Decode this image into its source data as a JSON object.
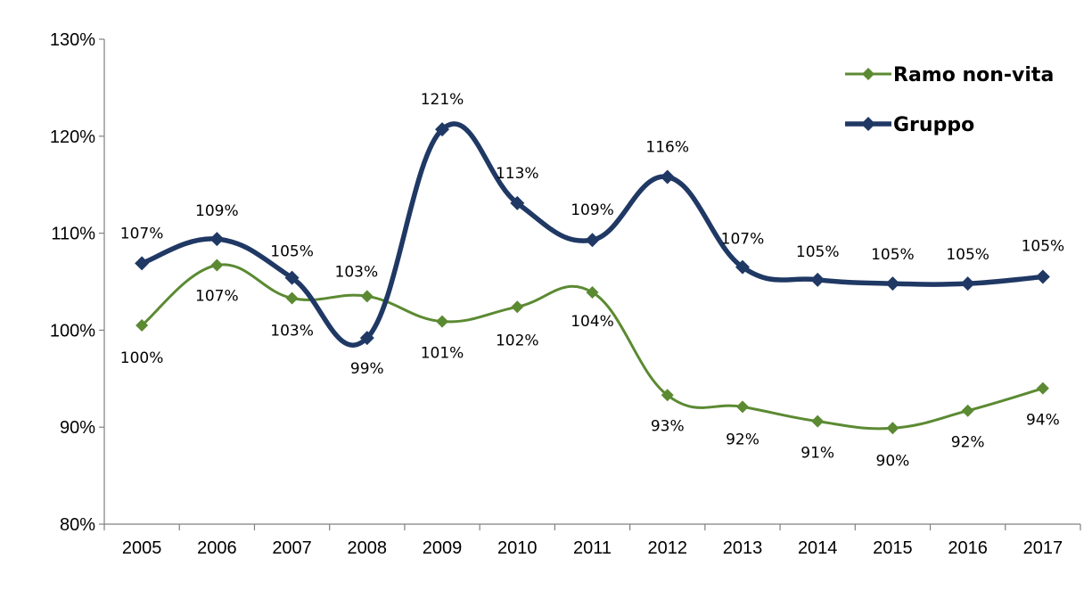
{
  "chart_data": {
    "type": "line",
    "x": [
      "2005",
      "2006",
      "2007",
      "2008",
      "2009",
      "2010",
      "2011",
      "2012",
      "2013",
      "2014",
      "2015",
      "2016",
      "2017"
    ],
    "ylim": [
      80,
      130
    ],
    "yticks": [
      80,
      90,
      100,
      110,
      120,
      130
    ],
    "ytick_labels": [
      "80%",
      "90%",
      "100%",
      "110%",
      "120%",
      "130%"
    ],
    "grid": false,
    "legend_position": "top-right",
    "xlabel": "",
    "ylabel": "",
    "series": [
      {
        "name": "Ramo non-vita",
        "color": "#5b8a32",
        "marker": "diamond",
        "values": [
          100.5,
          106.7,
          103.3,
          103.5,
          100.9,
          102.4,
          103.9,
          93.3,
          92.1,
          90.6,
          89.9,
          91.7,
          94.0
        ],
        "labels": [
          "100%",
          "107%",
          "103%",
          "103%",
          "101%",
          "102%",
          "104%",
          "93%",
          "92%",
          "91%",
          "90%",
          "92%",
          "94%"
        ]
      },
      {
        "name": "Gruppo",
        "color": "#1f3864",
        "marker": "diamond",
        "values": [
          106.9,
          109.4,
          105.4,
          99.2,
          120.7,
          113.1,
          109.3,
          115.8,
          106.5,
          105.2,
          104.8,
          104.8,
          105.5
        ],
        "labels": [
          "107%",
          "109%",
          "105%",
          "99%",
          "121%",
          "113%",
          "109%",
          "116%",
          "107%",
          "105%",
          "105%",
          "105%",
          "105%"
        ]
      }
    ]
  }
}
